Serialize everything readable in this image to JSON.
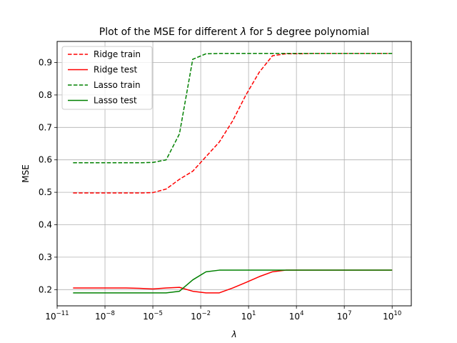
{
  "chart_data": {
    "type": "line",
    "title": "Plot of the MSE for different λ for 5 degree polynomial",
    "xlabel": "λ",
    "ylabel": "MSE",
    "x_scale": "log",
    "xlim_exponent": [
      -11,
      11.2
    ],
    "ylim": [
      0.15,
      0.965
    ],
    "grid": true,
    "legend_position": "top-left",
    "x_ticks": [
      {
        "base": "10",
        "exp": "−11",
        "value": -11
      },
      {
        "base": "10",
        "exp": "−8",
        "value": -8
      },
      {
        "base": "10",
        "exp": "−5",
        "value": -5
      },
      {
        "base": "10",
        "exp": "−2",
        "value": -2
      },
      {
        "base": "10",
        "exp": "1",
        "value": 1
      },
      {
        "base": "10",
        "exp": "4",
        "value": 4
      },
      {
        "base": "10",
        "exp": "7",
        "value": 7
      },
      {
        "base": "10",
        "exp": "10",
        "value": 10
      }
    ],
    "y_ticks": [
      {
        "label": "0.2",
        "value": 0.2
      },
      {
        "label": "0.3",
        "value": 0.3
      },
      {
        "label": "0.4",
        "value": 0.4
      },
      {
        "label": "0.5",
        "value": 0.5
      },
      {
        "label": "0.6",
        "value": 0.6
      },
      {
        "label": "0.7",
        "value": 0.7
      },
      {
        "label": "0.8",
        "value": 0.8
      },
      {
        "label": "0.9",
        "value": 0.9
      }
    ],
    "series": [
      {
        "name": "Ridge train",
        "color": "#ff0000",
        "dash": true,
        "log10_lambda": [
          -10,
          -9.167,
          -8.333,
          -7.5,
          -6.667,
          -5.833,
          -5,
          -4.167,
          -3.333,
          -2.5,
          -1.667,
          -0.833,
          0,
          0.833,
          1.667,
          2.5,
          3.333,
          4.167,
          5,
          5.833,
          6.667,
          7.5,
          8.333,
          9.167,
          10
        ],
        "values": [
          0.498,
          0.498,
          0.498,
          0.498,
          0.498,
          0.498,
          0.499,
          0.51,
          0.54,
          0.565,
          0.61,
          0.655,
          0.72,
          0.8,
          0.87,
          0.921,
          0.927,
          0.927,
          0.928,
          0.928,
          0.928,
          0.928,
          0.928,
          0.928,
          0.928
        ]
      },
      {
        "name": "Ridge test",
        "color": "#ff0000",
        "dash": false,
        "log10_lambda": [
          -10,
          -9.167,
          -8.333,
          -7.5,
          -6.667,
          -5.833,
          -5,
          -4.167,
          -3.333,
          -2.5,
          -1.667,
          -0.833,
          0,
          0.833,
          1.667,
          2.5,
          3.333,
          4.167,
          5,
          5.833,
          6.667,
          7.5,
          8.333,
          9.167,
          10
        ],
        "values": [
          0.205,
          0.205,
          0.205,
          0.205,
          0.205,
          0.204,
          0.202,
          0.205,
          0.207,
          0.195,
          0.19,
          0.19,
          0.205,
          0.222,
          0.24,
          0.255,
          0.26,
          0.26,
          0.26,
          0.26,
          0.26,
          0.26,
          0.26,
          0.26,
          0.26
        ]
      },
      {
        "name": "Lasso train",
        "color": "#008000",
        "dash": true,
        "log10_lambda": [
          -10,
          -9.167,
          -8.333,
          -7.5,
          -6.667,
          -5.833,
          -5,
          -4.167,
          -3.333,
          -2.5,
          -1.667,
          -0.833,
          0,
          0.833,
          1.667,
          2.5,
          3.333,
          4.167,
          5,
          5.833,
          6.667,
          7.5,
          8.333,
          9.167,
          10
        ],
        "values": [
          0.591,
          0.591,
          0.591,
          0.591,
          0.591,
          0.591,
          0.592,
          0.6,
          0.68,
          0.91,
          0.927,
          0.928,
          0.928,
          0.928,
          0.928,
          0.928,
          0.928,
          0.928,
          0.928,
          0.928,
          0.928,
          0.928,
          0.928,
          0.928,
          0.928
        ]
      },
      {
        "name": "Lasso test",
        "color": "#008000",
        "dash": false,
        "log10_lambda": [
          -10,
          -9.167,
          -8.333,
          -7.5,
          -6.667,
          -5.833,
          -5,
          -4.167,
          -3.333,
          -2.5,
          -1.667,
          -0.833,
          0,
          0.833,
          1.667,
          2.5,
          3.333,
          4.167,
          5,
          5.833,
          6.667,
          7.5,
          8.333,
          9.167,
          10
        ],
        "values": [
          0.19,
          0.19,
          0.19,
          0.19,
          0.19,
          0.19,
          0.19,
          0.19,
          0.195,
          0.23,
          0.255,
          0.26,
          0.26,
          0.26,
          0.26,
          0.26,
          0.26,
          0.26,
          0.26,
          0.26,
          0.26,
          0.26,
          0.26,
          0.26,
          0.26
        ]
      }
    ]
  }
}
